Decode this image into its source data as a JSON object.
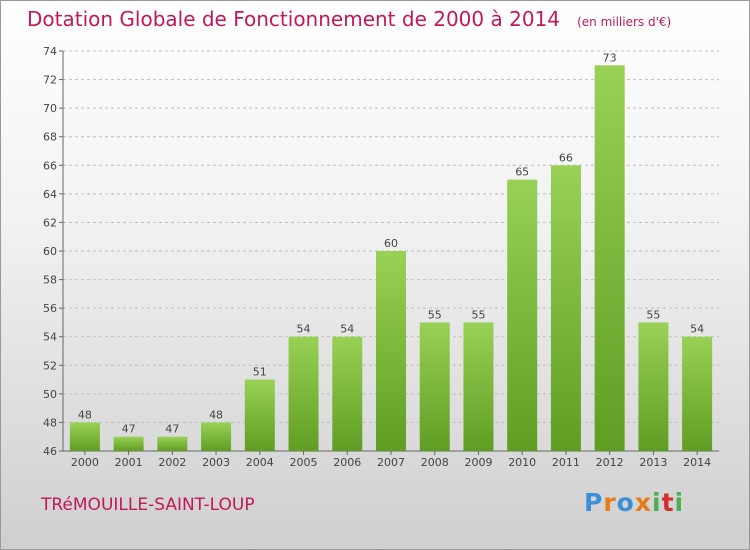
{
  "chart_data": {
    "type": "bar",
    "title": "Dotation Globale de Fonctionnement de 2000 à 2014",
    "subtitle": "(en milliers d'€)",
    "categories": [
      "2000",
      "2001",
      "2002",
      "2003",
      "2004",
      "2005",
      "2006",
      "2007",
      "2008",
      "2009",
      "2010",
      "2011",
      "2012",
      "2013",
      "2014"
    ],
    "values": [
      48,
      47,
      47,
      48,
      51,
      54,
      54,
      60,
      55,
      55,
      65,
      66,
      73,
      55,
      54
    ],
    "ylim": [
      46,
      74
    ],
    "yticks": [
      46,
      48,
      50,
      52,
      54,
      56,
      58,
      60,
      62,
      64,
      66,
      68,
      70,
      72,
      74
    ],
    "grid": true,
    "bar_color": "#7cbf3a"
  },
  "commune": "TRéMOUILLE-SAINT-LOUP",
  "logo": {
    "text": "Proxiti",
    "letters": [
      "P",
      "r",
      "o",
      "x",
      "i",
      "t",
      "i"
    ],
    "colors": [
      "#3a8fd6",
      "#e57c1a",
      "#3a8fd6",
      "#e57c1a",
      "#4caf50",
      "#d32f2f",
      "#4caf50"
    ]
  }
}
